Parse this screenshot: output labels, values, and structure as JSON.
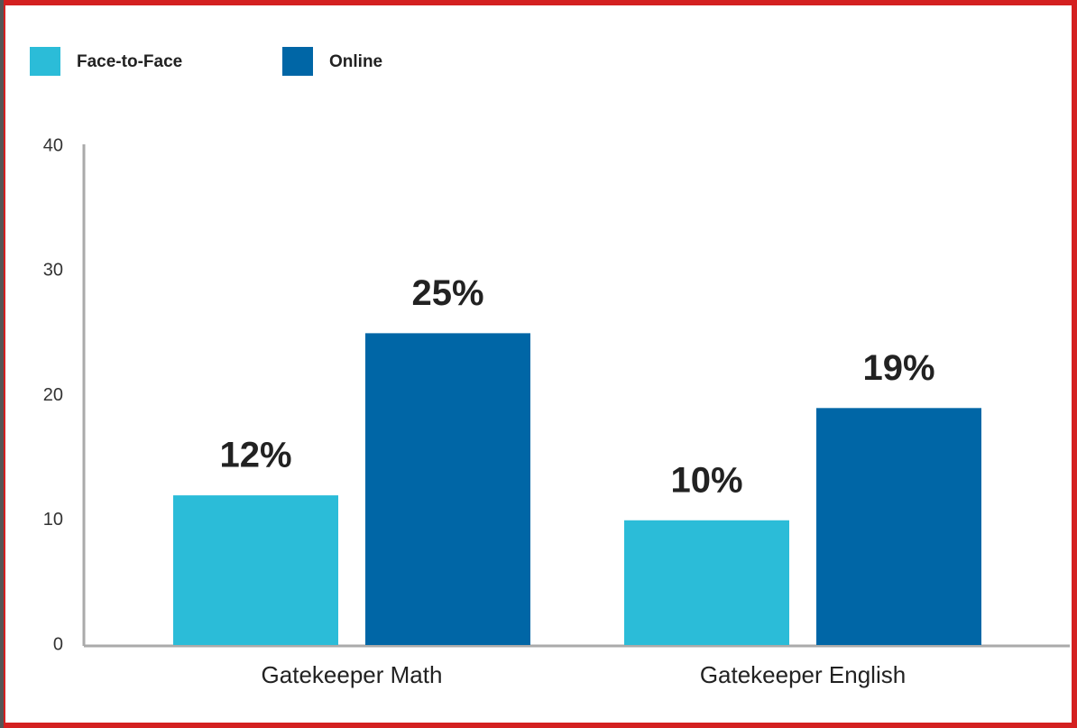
{
  "chart_data": {
    "type": "bar",
    "categories": [
      "Gatekeeper Math",
      "Gatekeeper English"
    ],
    "series": [
      {
        "name": "Face-to-Face",
        "color": "#2bbcd8",
        "values": [
          12,
          10
        ],
        "value_labels": [
          "12%",
          "10%"
        ]
      },
      {
        "name": "Online",
        "color": "#0066a6",
        "values": [
          25,
          19
        ],
        "value_labels": [
          "25%",
          "19%"
        ]
      }
    ],
    "ylim": [
      0,
      40
    ],
    "yticks": [
      0,
      10,
      20,
      30,
      40
    ],
    "grid": false,
    "legend": "top-left"
  }
}
